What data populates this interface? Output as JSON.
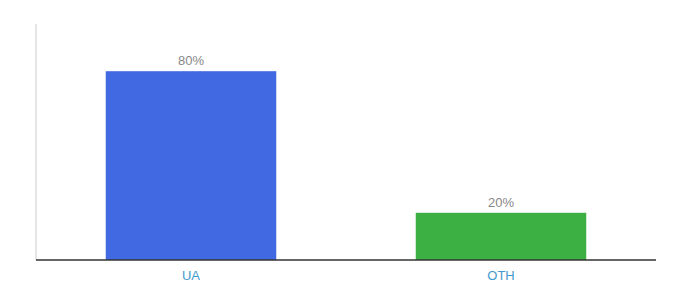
{
  "chart_data": {
    "type": "bar",
    "categories": [
      "UA",
      "OTH"
    ],
    "values": [
      80,
      20
    ],
    "value_labels": [
      "80%",
      "20%"
    ],
    "colors": [
      "#4169E1",
      "#3CB043"
    ],
    "ylim": [
      0,
      100
    ],
    "data_labels": true,
    "tick_labels": "x",
    "grid": false
  }
}
